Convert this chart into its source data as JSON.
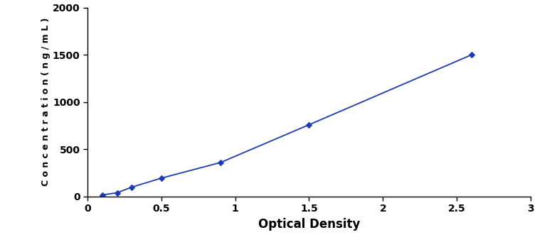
{
  "x_values": [
    0.1,
    0.2,
    0.3,
    0.5,
    0.9,
    1.5,
    2.6
  ],
  "y_values": [
    18,
    40,
    100,
    195,
    360,
    760,
    1500
  ],
  "line_color": "#1C3BB5",
  "marker_color": "#1C3BB5",
  "marker_style": "D",
  "marker_size": 4,
  "line_width": 1.3,
  "xlabel": "Optical Density",
  "ylabel": "C o n c e n t r a t i o n ( n g / m L )",
  "xlim": [
    0,
    3
  ],
  "ylim": [
    0,
    2000
  ],
  "xticks": [
    0,
    0.5,
    1,
    1.5,
    2,
    2.5,
    3
  ],
  "yticks": [
    0,
    500,
    1000,
    1500,
    2000
  ],
  "xlabel_fontsize": 12,
  "ylabel_fontsize": 9,
  "tick_fontsize": 10,
  "background_color": "#ffffff"
}
